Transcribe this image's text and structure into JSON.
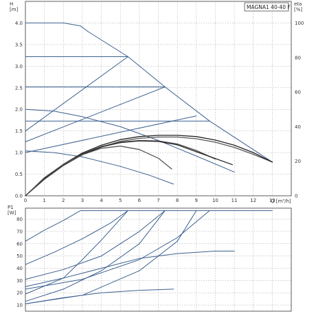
{
  "chart_data": [
    {
      "id": "head",
      "type": "line",
      "title": "MAGNA1 40-40 F",
      "xlabel": "Q [m³/h]",
      "ylabel": "H\n[m]",
      "y2label": "eta\n[%]",
      "xlim": [
        0,
        14
      ],
      "ylim": [
        0,
        4.5
      ],
      "y2lim": [
        0,
        112.5
      ],
      "x_ticks": [
        "0",
        "1",
        "2",
        "3",
        "4",
        "5",
        "6",
        "7",
        "8",
        "9",
        "10",
        "11",
        "12",
        "13"
      ],
      "y_ticks": [
        "0.0",
        "0.5",
        "1.0",
        "1.5",
        "2.0",
        "2.5",
        "3.0",
        "3.5",
        "4.0"
      ],
      "y2_ticks": [
        "0",
        "20",
        "40",
        "60",
        "80",
        "100"
      ],
      "grid": true,
      "colors": {
        "pump": "#3a5f8f",
        "efficiency": "#222222",
        "efficiency_light": "#555555"
      },
      "series": [
        {
          "role": "pump",
          "x": [
            0,
            1.0,
            2.0,
            2.9,
            3.3
          ],
          "y": [
            4.0,
            4.0,
            4.0,
            3.93,
            3.8
          ]
        },
        {
          "role": "pump",
          "x": [
            3.3,
            5.4,
            7.35,
            9.7,
            13.0
          ],
          "y": [
            3.8,
            3.22,
            2.52,
            1.73,
            0.78
          ]
        },
        {
          "role": "pump",
          "x": [
            0,
            5.4
          ],
          "y": [
            3.22,
            3.22
          ]
        },
        {
          "role": "pump",
          "x": [
            0,
            7.35
          ],
          "y": [
            2.52,
            2.52
          ]
        },
        {
          "role": "pump",
          "x": [
            0,
            9.7
          ],
          "y": [
            1.73,
            1.73
          ]
        },
        {
          "role": "pump",
          "x": [
            0,
            5.4
          ],
          "y": [
            1.5,
            3.22
          ]
        },
        {
          "role": "pump",
          "x": [
            0,
            7.35
          ],
          "y": [
            1.25,
            2.52
          ]
        },
        {
          "role": "pump",
          "x": [
            0,
            9.0
          ],
          "y": [
            1.0,
            1.85
          ]
        },
        {
          "role": "pump",
          "x": [
            0,
            1.5,
            3.0,
            5.0,
            7.0,
            9.0,
            11.0
          ],
          "y": [
            2.0,
            1.96,
            1.83,
            1.6,
            1.28,
            0.92,
            0.55
          ]
        },
        {
          "role": "pump",
          "x": [
            0,
            1.5,
            3.0,
            5.0,
            6.5,
            7.8
          ],
          "y": [
            1.04,
            1.0,
            0.9,
            0.68,
            0.48,
            0.27
          ]
        },
        {
          "role": "efficiency",
          "x": [
            0,
            1,
            2,
            3,
            4,
            5,
            6,
            7,
            8,
            9,
            10,
            11,
            12,
            13
          ],
          "y": [
            0,
            0.38,
            0.7,
            0.95,
            1.13,
            1.26,
            1.33,
            1.36,
            1.36,
            1.32,
            1.24,
            1.12,
            0.96,
            0.78
          ]
        },
        {
          "role": "efficiency",
          "x": [
            0,
            1,
            2,
            3,
            4,
            5,
            6,
            7,
            8,
            9,
            10,
            11,
            12,
            13
          ],
          "y": [
            0,
            0.4,
            0.73,
            0.99,
            1.17,
            1.3,
            1.37,
            1.4,
            1.4,
            1.37,
            1.29,
            1.17,
            1.0,
            0.78
          ]
        },
        {
          "role": "efficiency",
          "x": [
            0,
            1,
            2,
            3,
            4,
            5,
            6,
            7,
            8,
            9,
            10
          ],
          "y": [
            0,
            0.4,
            0.72,
            0.97,
            1.14,
            1.24,
            1.28,
            1.27,
            1.2,
            1.05,
            0.85
          ]
        },
        {
          "role": "efficiency",
          "x": [
            0,
            1,
            2,
            3,
            4,
            5,
            6,
            7,
            8,
            9,
            10.9
          ],
          "y": [
            0,
            0.4,
            0.72,
            0.96,
            1.13,
            1.23,
            1.27,
            1.26,
            1.18,
            1.02,
            0.72
          ]
        },
        {
          "role": "efficiency",
          "x": [
            0,
            1,
            2,
            3,
            4,
            5,
            6,
            7,
            7.7
          ],
          "y": [
            0,
            0.42,
            0.73,
            0.95,
            1.1,
            1.15,
            1.07,
            0.87,
            0.62
          ]
        }
      ]
    },
    {
      "id": "power",
      "type": "line",
      "ylabel": "P1\n[W]",
      "xlim": [
        0,
        14
      ],
      "ylim": [
        5,
        89
      ],
      "y_ticks": [
        "10",
        "20",
        "30",
        "40",
        "50",
        "60",
        "70",
        "80"
      ],
      "grid": true,
      "colors": {
        "pump": "#3a5f8f"
      },
      "series": [
        {
          "role": "pump",
          "x": [
            0,
            1,
            2,
            2.9,
            13.0
          ],
          "y": [
            62,
            71,
            79,
            87,
            87
          ]
        },
        {
          "role": "pump",
          "x": [
            0,
            1.5,
            3,
            4.5,
            5.4
          ],
          "y": [
            43,
            53,
            64,
            77,
            87
          ]
        },
        {
          "role": "pump",
          "x": [
            0,
            2,
            4,
            6,
            7.35
          ],
          "y": [
            31,
            39,
            50,
            70,
            87
          ]
        },
        {
          "role": "pump",
          "x": [
            0,
            3,
            6,
            8,
            9.7
          ],
          "y": [
            23,
            31,
            47,
            65,
            87
          ]
        },
        {
          "role": "pump",
          "x": [
            0,
            2,
            3,
            4,
            5.4
          ],
          "y": [
            19,
            32,
            47,
            63,
            87
          ]
        },
        {
          "role": "pump",
          "x": [
            0,
            2,
            4,
            6,
            7.35
          ],
          "y": [
            13,
            23,
            38,
            60,
            87
          ]
        },
        {
          "role": "pump",
          "x": [
            0,
            3,
            6,
            8,
            9.0
          ],
          "y": [
            11,
            18,
            38,
            62,
            87
          ]
        },
        {
          "role": "pump",
          "x": [
            0,
            2,
            4,
            6,
            8,
            10,
            11
          ],
          "y": [
            25,
            32,
            40,
            48,
            52,
            54,
            54
          ]
        },
        {
          "role": "pump",
          "x": [
            0,
            2,
            4,
            6,
            7.8
          ],
          "y": [
            11,
            16,
            20,
            22,
            23
          ]
        }
      ]
    }
  ]
}
